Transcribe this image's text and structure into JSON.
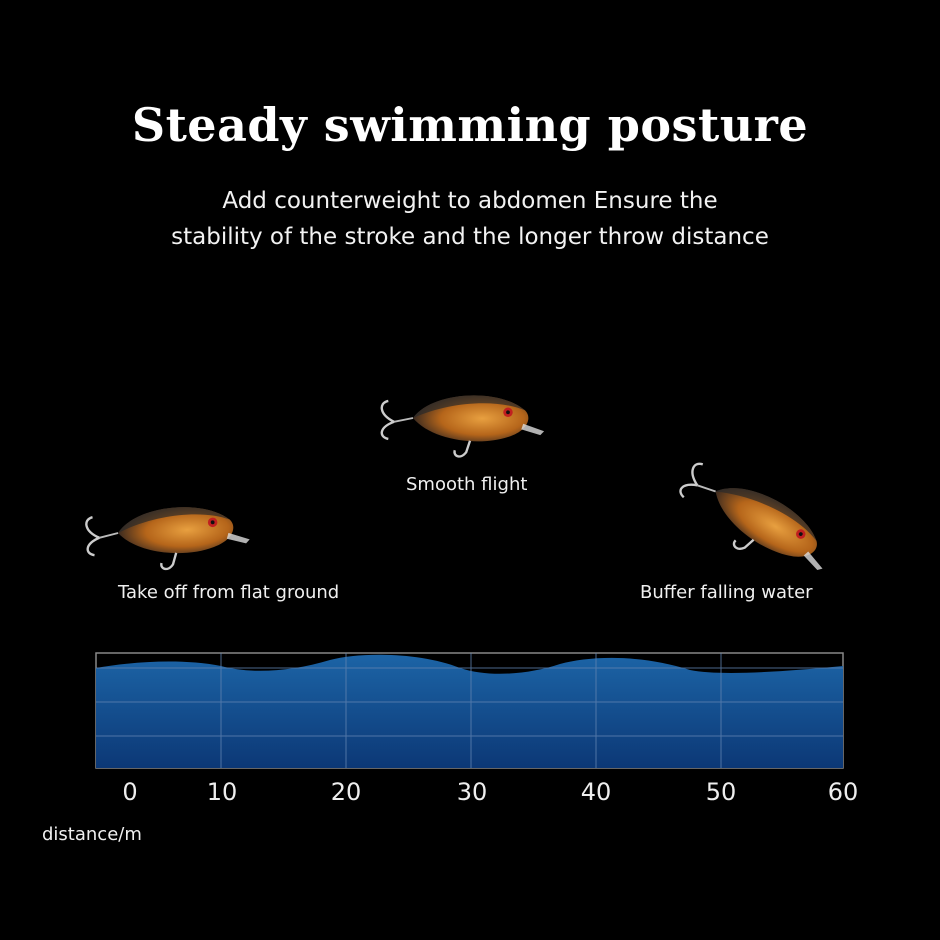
{
  "title": "Steady swimming posture",
  "subtitle_lines": [
    "Add counterweight to abdomen Ensure the",
    "stability of the stroke and the longer throw distance"
  ],
  "stages": [
    {
      "label": "Take off from flat ground"
    },
    {
      "label": "Smooth flight"
    },
    {
      "label": "Buffer falling water"
    }
  ],
  "axis": {
    "ticks": [
      "0",
      "10",
      "20",
      "30",
      "40",
      "50",
      "60"
    ],
    "label": "distance/m"
  },
  "colors": {
    "background": "#000000",
    "water_top": "#1a5c9a",
    "water_bottom": "#0d3a78",
    "grid": "#6f8fb8",
    "fish_body": "#c8781e"
  }
}
